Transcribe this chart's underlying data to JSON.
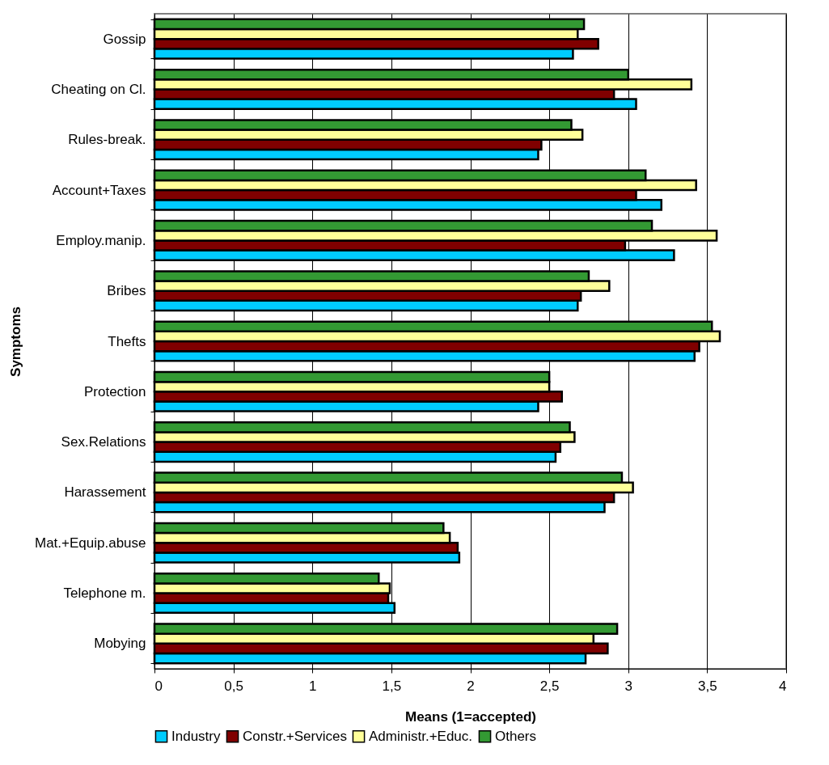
{
  "chart_data": {
    "type": "bar",
    "orientation": "horizontal",
    "xlabel": "Means (1=accepted)",
    "ylabel": "Symptoms",
    "categories": [
      "Gossip",
      "Cheating on Cl.",
      "Rules-break.",
      "Account+Taxes",
      "Employ.manip.",
      "Bribes",
      "Thefts",
      "Protection",
      "Sex.Relations",
      "Harassement",
      "Mat.+Equip.abuse",
      "Telephone m.",
      "Mobying"
    ],
    "series": [
      {
        "name": "Industry",
        "color": "#00ccff",
        "values": [
          2.65,
          3.05,
          2.43,
          3.21,
          3.29,
          2.68,
          3.42,
          2.43,
          2.54,
          2.85,
          1.93,
          1.52,
          2.73
        ]
      },
      {
        "name": "Constr.+Services",
        "color": "#800000",
        "values": [
          2.81,
          2.91,
          2.45,
          3.05,
          2.98,
          2.7,
          3.45,
          2.58,
          2.57,
          2.91,
          1.92,
          1.48,
          2.87
        ]
      },
      {
        "name": "Administr.+Educ.",
        "color": "#ffff99",
        "values": [
          2.68,
          3.4,
          2.71,
          3.43,
          3.56,
          2.88,
          3.58,
          2.5,
          2.66,
          3.03,
          1.87,
          1.49,
          2.78
        ]
      },
      {
        "name": "Others",
        "color": "#339933",
        "values": [
          2.72,
          3.0,
          2.64,
          3.11,
          3.15,
          2.75,
          3.53,
          2.5,
          2.63,
          2.96,
          1.83,
          1.42,
          2.93
        ]
      }
    ],
    "xlim": [
      0,
      4
    ],
    "xticks": [
      0,
      {
        "value": 0.5,
        "label": "0,5"
      },
      1,
      {
        "value": 1.5,
        "label": "1,5"
      },
      2,
      {
        "value": 2.5,
        "label": "2,5"
      },
      3,
      {
        "value": 3.5,
        "label": "3,5"
      },
      4
    ],
    "grid": "x",
    "legend": "bottom"
  }
}
